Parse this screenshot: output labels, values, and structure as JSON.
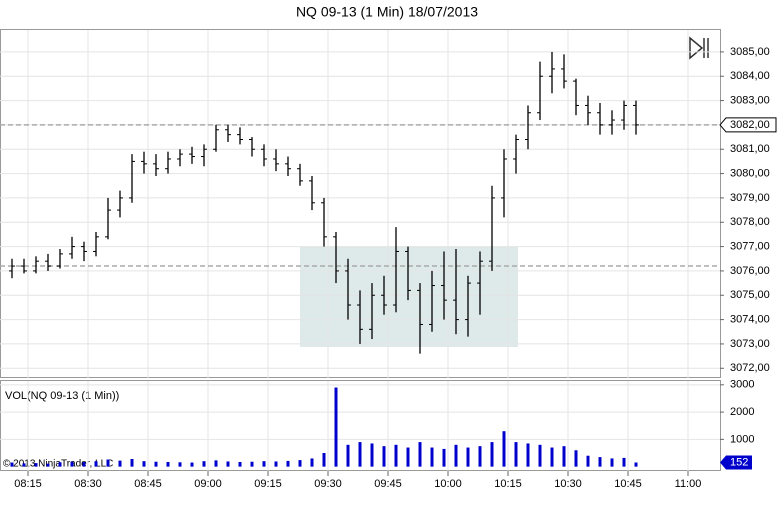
{
  "chart_data": [
    {
      "type": "ohlc",
      "title": "NQ 09-13 (1 Min)  18/07/2013",
      "x": [
        "08:11",
        "08:14",
        "08:17",
        "08:20",
        "08:23",
        "08:26",
        "08:29",
        "08:32",
        "08:35",
        "08:38",
        "08:41",
        "08:44",
        "08:47",
        "08:50",
        "08:53",
        "08:56",
        "08:59",
        "09:02",
        "09:05",
        "09:08",
        "09:11",
        "09:14",
        "09:17",
        "09:20",
        "09:23",
        "09:26",
        "09:29",
        "09:32",
        "09:35",
        "09:38",
        "09:41",
        "09:44",
        "09:47",
        "09:50",
        "09:53",
        "09:56",
        "09:59",
        "10:02",
        "10:05",
        "10:08",
        "10:11",
        "10:14",
        "10:17",
        "10:20",
        "10:23",
        "10:26",
        "10:29",
        "10:32",
        "10:35",
        "10:38",
        "10:41",
        "10:44",
        "10:47"
      ],
      "open": [
        3076.0,
        3076.2,
        3076.0,
        3076.4,
        3076.2,
        3076.7,
        3077.0,
        3076.8,
        3077.4,
        3078.5,
        3079.0,
        3080.5,
        3080.4,
        3080.2,
        3080.6,
        3080.8,
        3080.7,
        3081.0,
        3081.8,
        3081.6,
        3081.4,
        3081.0,
        3080.6,
        3080.4,
        3080.2,
        3079.7,
        3078.8,
        3077.4,
        3076.0,
        3074.6,
        3073.6,
        3075.0,
        3074.6,
        3076.8,
        3075.2,
        3073.8,
        3075.4,
        3074.8,
        3074.0,
        3075.5,
        3076.4,
        3079.0,
        3080.6,
        3081.4,
        3082.5,
        3084.0,
        3084.3,
        3083.8,
        3082.8,
        3082.5,
        3082.0,
        3082.2,
        3082.8
      ],
      "high": [
        3076.5,
        3076.5,
        3076.6,
        3076.7,
        3076.9,
        3077.4,
        3077.2,
        3077.6,
        3079.0,
        3079.3,
        3080.8,
        3080.9,
        3080.8,
        3080.9,
        3081.0,
        3081.1,
        3081.2,
        3082.0,
        3082.0,
        3081.9,
        3081.5,
        3081.2,
        3081.0,
        3080.7,
        3080.4,
        3079.9,
        3079.0,
        3077.6,
        3076.5,
        3075.2,
        3075.5,
        3075.8,
        3077.8,
        3077.0,
        3075.5,
        3076.0,
        3076.8,
        3076.9,
        3075.8,
        3076.8,
        3079.5,
        3081.0,
        3081.6,
        3082.8,
        3084.6,
        3085.0,
        3084.9,
        3083.9,
        3083.2,
        3082.9,
        3082.6,
        3083.0,
        3083.0
      ],
      "low": [
        3075.7,
        3075.9,
        3075.9,
        3076.0,
        3076.1,
        3076.5,
        3076.4,
        3076.6,
        3077.3,
        3078.2,
        3078.8,
        3080.0,
        3079.9,
        3080.0,
        3080.3,
        3080.4,
        3080.3,
        3080.9,
        3081.3,
        3081.2,
        3080.7,
        3080.3,
        3080.1,
        3079.9,
        3079.5,
        3078.5,
        3077.0,
        3075.5,
        3074.0,
        3073.0,
        3073.2,
        3074.2,
        3074.3,
        3074.8,
        3072.6,
        3073.5,
        3074.0,
        3073.4,
        3073.3,
        3074.2,
        3076.0,
        3078.2,
        3080.0,
        3081.0,
        3082.2,
        3083.3,
        3083.5,
        3082.4,
        3082.0,
        3081.6,
        3081.6,
        3081.8,
        3081.6
      ],
      "close": [
        3076.2,
        3076.0,
        3076.4,
        3076.2,
        3076.7,
        3077.0,
        3076.8,
        3077.4,
        3078.5,
        3079.0,
        3080.5,
        3080.4,
        3080.2,
        3080.6,
        3080.8,
        3080.7,
        3081.0,
        3081.8,
        3081.6,
        3081.4,
        3081.0,
        3080.6,
        3080.4,
        3080.2,
        3079.7,
        3078.8,
        3077.4,
        3076.0,
        3074.6,
        3073.6,
        3075.0,
        3074.6,
        3076.8,
        3075.2,
        3073.8,
        3075.4,
        3074.8,
        3074.0,
        3075.5,
        3076.4,
        3079.0,
        3080.6,
        3081.4,
        3082.5,
        3084.0,
        3084.3,
        3083.8,
        3082.8,
        3082.5,
        3082.0,
        3082.2,
        3082.8,
        3082.0
      ],
      "xlim": [
        "08:08",
        "11:08"
      ],
      "ylim": [
        3071.6,
        3085.9
      ],
      "yticks": [
        {
          "value": 3072,
          "label": "3072,00"
        },
        {
          "value": 3073,
          "label": "3073,00"
        },
        {
          "value": 3074,
          "label": "3074,00"
        },
        {
          "value": 3075,
          "label": "3075,00"
        },
        {
          "value": 3076,
          "label": "3076,00"
        },
        {
          "value": 3077,
          "label": "3077,00"
        },
        {
          "value": 3078,
          "label": "3078,00"
        },
        {
          "value": 3079,
          "label": "3079,00"
        },
        {
          "value": 3080,
          "label": "3080,00"
        },
        {
          "value": 3081,
          "label": "3081,00"
        },
        {
          "value": 3082,
          "label": "3082,00"
        },
        {
          "value": 3083,
          "label": "3083,00"
        },
        {
          "value": 3084,
          "label": "3084,00"
        },
        {
          "value": 3085,
          "label": "3085,00"
        }
      ],
      "reference_lines": [
        3082.0,
        3076.2
      ],
      "last_price": {
        "value": 3082.0,
        "label": "3082,00"
      },
      "color": "#000000",
      "grid": true
    },
    {
      "type": "bar",
      "title": "VOL(NQ 09-13 (1 Min))",
      "values": [
        150,
        120,
        130,
        110,
        160,
        180,
        170,
        200,
        260,
        220,
        280,
        200,
        180,
        170,
        160,
        150,
        200,
        230,
        190,
        170,
        180,
        200,
        190,
        210,
        240,
        300,
        500,
        2900,
        800,
        900,
        850,
        750,
        800,
        700,
        900,
        700,
        650,
        800,
        700,
        750,
        900,
        1300,
        900,
        850,
        800,
        700,
        750,
        600,
        400,
        350,
        300,
        320,
        152
      ],
      "ylim": [
        -160,
        3140
      ],
      "yticks": [
        1000,
        2000,
        3000
      ],
      "xticks": [
        "08:15",
        "08:30",
        "08:45",
        "09:00",
        "09:15",
        "09:30",
        "09:45",
        "10:00",
        "10:15",
        "10:30",
        "10:45",
        "11:00"
      ],
      "color": "#0000cc",
      "grid": true
    }
  ],
  "copyright": "© 2013 NinjaTrader, LLC"
}
